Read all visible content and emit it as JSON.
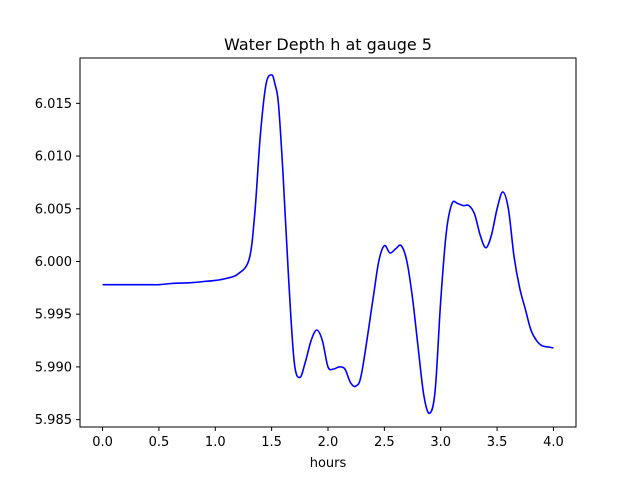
{
  "chart_data": {
    "type": "line",
    "title": "Water Depth h at gauge 5",
    "xlabel": "hours",
    "ylabel": "",
    "xlim": [
      -0.2,
      4.2
    ],
    "ylim": [
      5.9843,
      6.0193
    ],
    "x_ticks": [
      "0.0",
      "0.5",
      "1.0",
      "1.5",
      "2.0",
      "2.5",
      "3.0",
      "3.5",
      "4.0"
    ],
    "y_ticks": [
      "5.985",
      "5.990",
      "5.995",
      "6.000",
      "6.005",
      "6.010",
      "6.015"
    ],
    "grid": false,
    "series": [
      {
        "color": "#0000ff",
        "x": [
          0.0,
          0.2,
          0.4,
          0.5,
          0.6,
          0.8,
          0.9,
          1.0,
          1.1,
          1.2,
          1.3,
          1.35,
          1.4,
          1.45,
          1.5,
          1.53,
          1.56,
          1.6,
          1.65,
          1.7,
          1.75,
          1.8,
          1.85,
          1.9,
          1.95,
          2.0,
          2.05,
          2.1,
          2.15,
          2.2,
          2.25,
          2.3,
          2.4,
          2.45,
          2.5,
          2.55,
          2.6,
          2.65,
          2.7,
          2.75,
          2.8,
          2.85,
          2.9,
          2.95,
          3.0,
          3.05,
          3.1,
          3.15,
          3.2,
          3.25,
          3.3,
          3.35,
          3.4,
          3.45,
          3.5,
          3.55,
          3.6,
          3.65,
          3.7,
          3.75,
          3.8,
          3.85,
          3.9,
          3.95,
          4.0
        ],
        "y": [
          5.9978,
          5.9978,
          5.9978,
          5.9978,
          5.9979,
          5.998,
          5.9981,
          5.9982,
          5.9984,
          5.9988,
          6.0002,
          6.0045,
          6.012,
          6.0168,
          6.0177,
          6.0168,
          6.015,
          6.0085,
          5.9985,
          5.9905,
          5.989,
          5.9905,
          5.9925,
          5.9935,
          5.9925,
          5.99,
          5.9898,
          5.99,
          5.9898,
          5.9885,
          5.9882,
          5.9895,
          5.9965,
          6.0,
          6.0015,
          6.0008,
          6.0012,
          6.0015,
          6.0,
          5.9965,
          5.9918,
          5.9873,
          5.9856,
          5.9877,
          5.9963,
          6.0028,
          6.0055,
          6.0055,
          6.0053,
          6.0053,
          6.0045,
          6.0025,
          6.0013,
          6.0025,
          6.005,
          6.0066,
          6.005,
          6.0005,
          5.9975,
          5.9955,
          5.9935,
          5.9925,
          5.992,
          5.9919,
          5.9918
        ]
      }
    ]
  }
}
